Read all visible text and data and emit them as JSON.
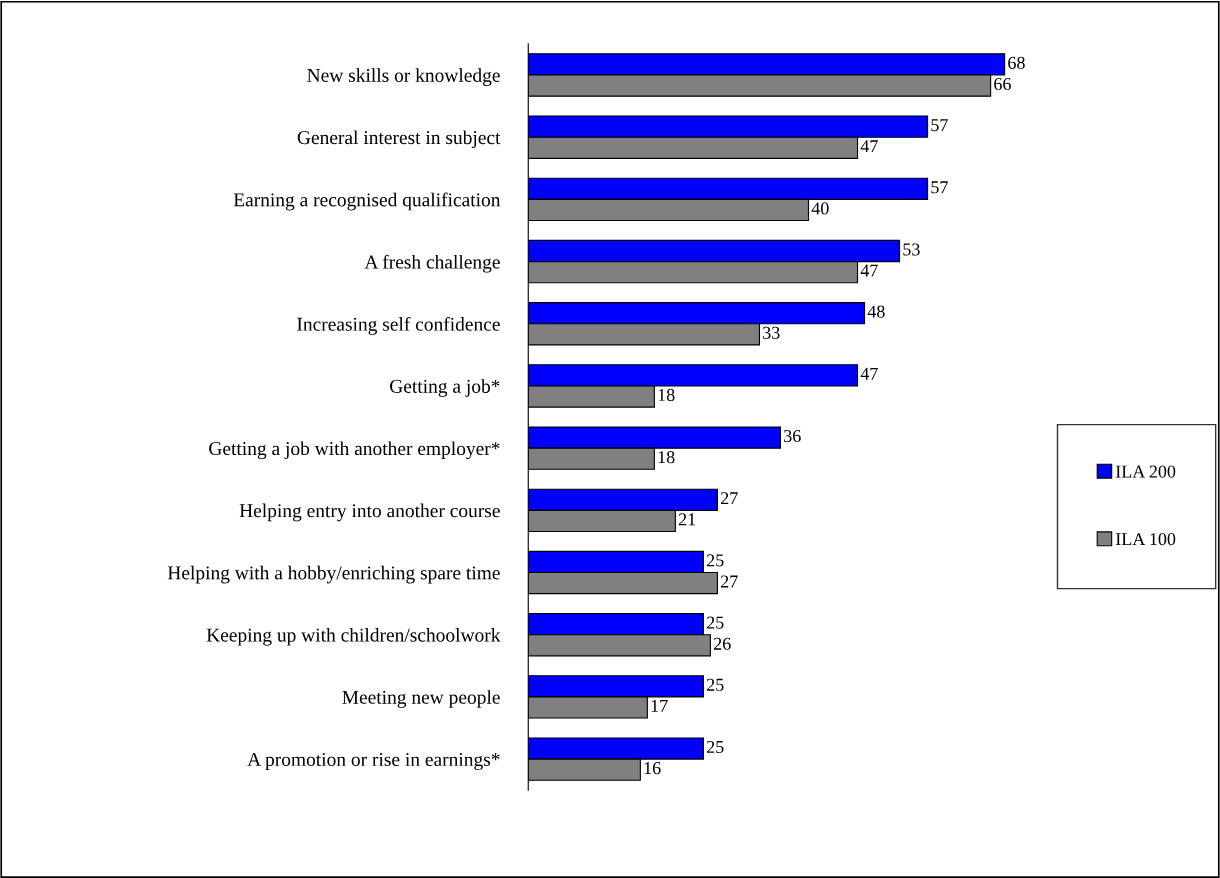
{
  "chart_data": {
    "type": "bar",
    "orientation": "horizontal",
    "categories": [
      "New skills or knowledge",
      "General interest in subject",
      "Earning a recognised qualification",
      "A fresh challenge",
      "Increasing self confidence",
      "Getting a job*",
      "Getting a job with another employer*",
      "Helping entry into another course",
      "Helping with a hobby/enriching spare time",
      "Keeping up with children/schoolwork",
      "Meeting new people",
      "A promotion or rise in earnings*"
    ],
    "series": [
      {
        "name": "ILA 200",
        "color": "#0000ff",
        "values": [
          68,
          57,
          57,
          53,
          48,
          47,
          36,
          27,
          25,
          25,
          25,
          25
        ]
      },
      {
        "name": "ILA 100",
        "color": "#808080",
        "values": [
          66,
          47,
          40,
          47,
          33,
          18,
          18,
          21,
          27,
          26,
          17,
          16
        ]
      }
    ],
    "relative": false,
    "data_labels": true,
    "legend": "right",
    "grid": false
  }
}
